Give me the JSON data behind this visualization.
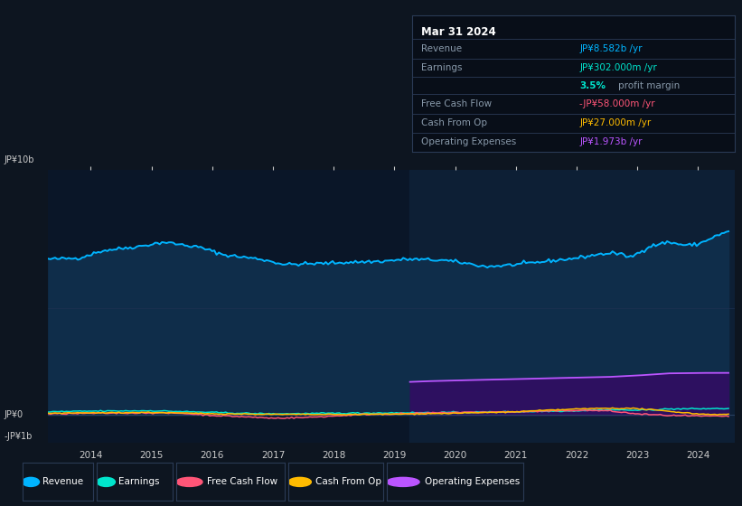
{
  "bg_color": "#0d1520",
  "chart_bg": "#0a1628",
  "shaded_bg": "#0d1f35",
  "ylabel_top": "JP¥10b",
  "ylabel_mid": "JP¥0",
  "ylabel_bot": "-JP¥1b",
  "ylim": [
    -1.3,
    11.5
  ],
  "xlim": [
    2013.3,
    2024.6
  ],
  "x_ticks": [
    2014,
    2015,
    2016,
    2017,
    2018,
    2019,
    2020,
    2021,
    2022,
    2023,
    2024
  ],
  "shaded_start": 2019.25,
  "shaded_end": 2024.6,
  "revenue_color": "#00b4ff",
  "earnings_color": "#00e5cc",
  "fcf_color": "#ff5577",
  "cashop_color": "#ffbb00",
  "opex_color": "#bb55ff",
  "revenue_fill": "#0f2d4a",
  "opex_fill": "#2d1060",
  "title_box": {
    "date": "Mar 31 2024",
    "revenue_label": "Revenue",
    "revenue_value": "JP¥8.582b /yr",
    "earnings_label": "Earnings",
    "earnings_value": "JP¥302.000m /yr",
    "margin_value": "3.5%",
    "margin_text": "profit margin",
    "fcf_label": "Free Cash Flow",
    "fcf_value": "-JP¥58.000m /yr",
    "cashop_label": "Cash From Op",
    "cashop_value": "JP¥27.000m /yr",
    "opex_label": "Operating Expenses",
    "opex_value": "JP¥1.973b /yr"
  },
  "legend_items": [
    {
      "label": "Revenue",
      "color": "#00b4ff"
    },
    {
      "label": "Earnings",
      "color": "#00e5cc"
    },
    {
      "label": "Free Cash Flow",
      "color": "#ff5577"
    },
    {
      "label": "Cash From Op",
      "color": "#ffbb00"
    },
    {
      "label": "Operating Expenses",
      "color": "#bb55ff"
    }
  ]
}
